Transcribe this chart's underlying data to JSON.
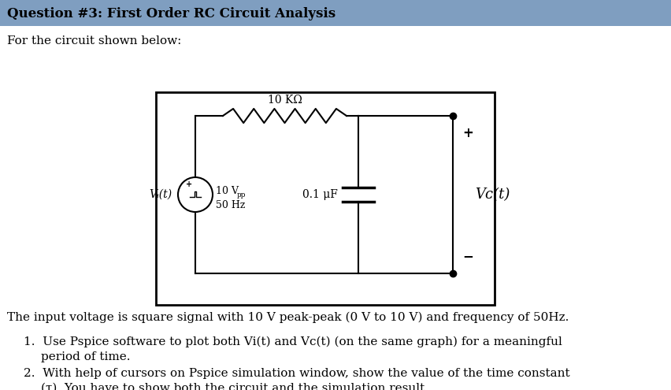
{
  "title": "Question #3: First Order RC Circuit Analysis",
  "title_bg": "#7f9ec0",
  "title_text_color": "#000000",
  "body_bg": "#ffffff",
  "intro_text": "For the circuit shown below:",
  "resistor_label": "10 KΩ",
  "capacitor_label": "0.1 μF",
  "source_label_main": "10 V",
  "source_label_sub": "pp",
  "source_label_hz": "50 Hz",
  "vi_label": "Vᵢ(t)",
  "vc_label": "Vᴄ(t)",
  "description": "The input voltage is square signal with 10 V peak-peak (0 V to 10 V) and frequency of 50Hz.",
  "item1_line1": "Use Pspice software to plot both Vi(t) and Vc(t) (on the same graph) for a meaningful",
  "item1_line2": "period of time.",
  "item2_line1": "With help of cursors on Pspice simulation window, show the value of the time constant",
  "item2_line2": "(τ). You have to show both the circuit and the simulation result.",
  "font_size_body": 11,
  "font_size_title": 12,
  "plus_sign": "+",
  "minus_sign": "−"
}
